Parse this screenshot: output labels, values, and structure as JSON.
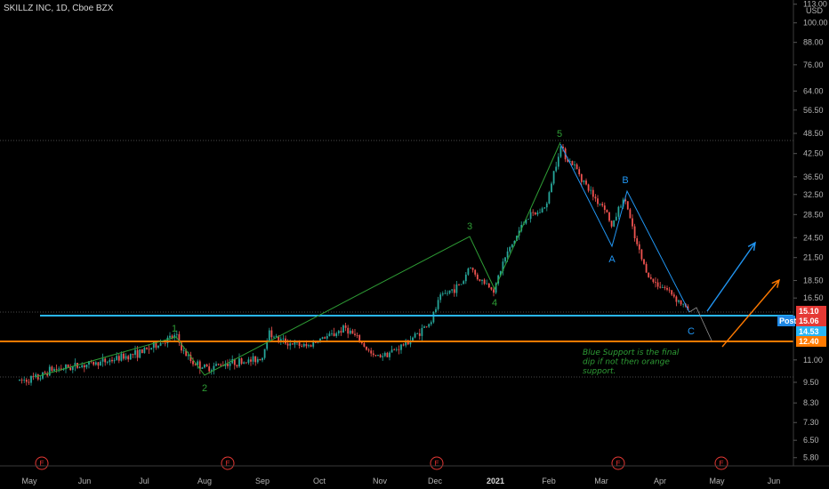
{
  "header": {
    "title": "SKILLZ INC, 1D, Cboe BZX"
  },
  "axis": {
    "currency": "USD",
    "price_labels": [
      "113.00",
      "100.00",
      "88.00",
      "76.00",
      "64.00",
      "56.50",
      "48.50",
      "42.50",
      "36.50",
      "32.50",
      "28.50",
      "24.50",
      "21.50",
      "18.50",
      "16.50",
      "11.00",
      "9.50",
      "8.30",
      "7.30",
      "6.50",
      "5.80"
    ],
    "month_labels": [
      "May",
      "Jun",
      "Jul",
      "Aug",
      "Sep",
      "Oct",
      "Nov",
      "Dec",
      "2021",
      "Feb",
      "Mar",
      "Apr",
      "May",
      "Jun"
    ]
  },
  "price_tags": [
    {
      "label": "15.10",
      "color": "#e53935"
    },
    {
      "label": "Post",
      "color": "#1e88e5"
    },
    {
      "label": "15.06",
      "color": "#e53935"
    },
    {
      "label": "14.53",
      "color": "#29b6f6"
    },
    {
      "label": "12.40",
      "color": "#ff7a00"
    }
  ],
  "wave_labels": {
    "impulse": [
      "1",
      "2",
      "3",
      "4",
      "5"
    ],
    "correction": [
      "A",
      "B",
      "C"
    ]
  },
  "annotation": [
    "Blue  Support is the final",
    "dip if not then orange",
    "support."
  ],
  "events_marker": "E",
  "colors": {
    "background": "#000000",
    "up_candle": "#26a69a",
    "down_candle": "#ef5350",
    "green_line": "#2e9d35",
    "blue_line": "#2196f3",
    "orange_line": "#ff7a00",
    "blue_support": "#29b6f6",
    "event_red": "#e53935"
  },
  "chart_data": {
    "type": "candlestick",
    "title": "SKILLZ INC, 1D, Cboe BZX",
    "y_scale": "log",
    "currency": "USD",
    "last_price": 15.1,
    "post_market_price": 15.06,
    "support_levels": [
      {
        "name": "Blue Support",
        "value": 14.53
      },
      {
        "name": "Orange support",
        "value": 12.4
      }
    ],
    "wave_points": [
      {
        "label": "1",
        "date": "2020-07-23",
        "price": 12.9
      },
      {
        "label": "2",
        "date": "2020-08-01",
        "price": 9.9
      },
      {
        "label": "3",
        "date": "2020-12-20",
        "price": 24.5
      },
      {
        "label": "4",
        "date": "2020-12-28",
        "price": 17.3
      },
      {
        "label": "5",
        "date": "2021-02-08",
        "price": 46.0
      },
      {
        "label": "A",
        "date": "2021-03-08",
        "price": 23.0
      },
      {
        "label": "B",
        "date": "2021-03-18",
        "price": 34.0
      },
      {
        "label": "C",
        "date": "2021-04-14",
        "price": 15.1
      }
    ],
    "projection_arrows": [
      {
        "color": "blue",
        "from_price": 15.5,
        "to_price": 23.0
      },
      {
        "color": "orange",
        "from_price": 12.4,
        "to_price": 18.3
      }
    ],
    "event_markers": 5
  }
}
